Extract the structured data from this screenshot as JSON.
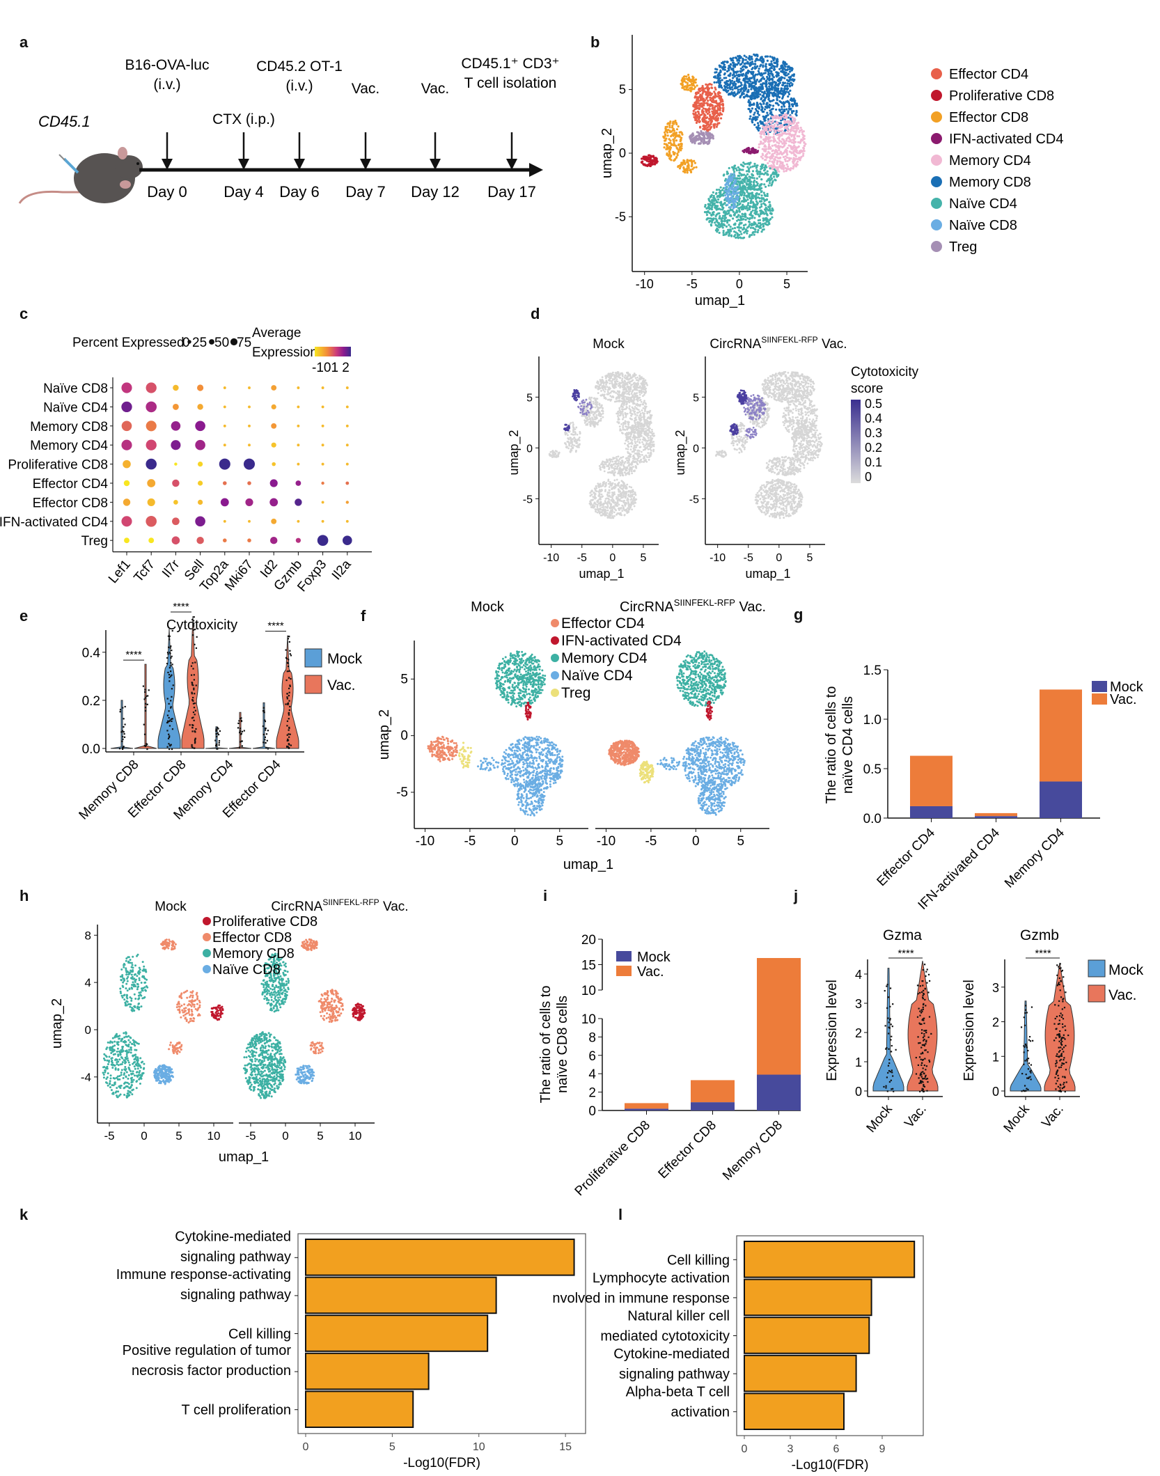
{
  "panels": {
    "a": {
      "letter": "a",
      "mouse_label": "CD45.1",
      "events": [
        {
          "day": "Day 0",
          "label_lines": [
            "B16-OVA-luc",
            "(i.v.)"
          ]
        },
        {
          "day": "Day 4",
          "label_lines": [
            "CTX (i.p.)"
          ]
        },
        {
          "day": "Day 6",
          "label_lines": [
            "CD45.2 OT-1",
            "(i.v.)"
          ]
        },
        {
          "day": "Day 7",
          "label_lines": [
            "Vac."
          ]
        },
        {
          "day": "Day 12",
          "label_lines": [
            "Vac."
          ]
        },
        {
          "day": "Day 17",
          "label_lines": [
            "CD45.1⁺ CD3⁺",
            "T cell isolation"
          ]
        }
      ]
    },
    "b": {
      "letter": "b",
      "xlabel": "umap_1",
      "ylabel": "umap_2",
      "xticks": [
        "-10",
        "-5",
        "0",
        "5"
      ],
      "yticks": [
        "5",
        "0",
        "-5"
      ],
      "legend": [
        {
          "label": "Effector CD4",
          "color": "#e8604a"
        },
        {
          "label": "Proliferative CD8",
          "color": "#c0172d"
        },
        {
          "label": "Effector CD8",
          "color": "#f2a024"
        },
        {
          "label": "IFN-activated CD4",
          "color": "#8b1a6e"
        },
        {
          "label": "Memory CD4",
          "color": "#f1b8d3"
        },
        {
          "label": "Memory CD8",
          "color": "#1a6fb5"
        },
        {
          "label": "Naïve CD4",
          "color": "#45b3aa"
        },
        {
          "label": "Naïve CD8",
          "color": "#6aade3"
        },
        {
          "label": "Treg",
          "color": "#a58fb4"
        }
      ]
    },
    "c": {
      "letter": "c",
      "size_legend_title": "Percent Expressed",
      "size_legend_values": [
        "0",
        "25",
        "50",
        "75"
      ],
      "color_legend_title_lines": [
        "Average",
        "Expression"
      ],
      "color_legend_ticks": "-101 2"
    },
    "d": {
      "letter": "d",
      "titles": [
        "Mock",
        "CircRNA"
      ],
      "title_superscript": "SIINFEKL-RFP",
      "title_suffix": " Vac.",
      "xlabel": "umap_1",
      "ylabel": "umap_2",
      "xticks": [
        "-10",
        "-5",
        "0",
        "5"
      ],
      "yticks": [
        "5",
        "0",
        "-5"
      ],
      "colorbar_title_lines": [
        "Cytotoxicity",
        "score"
      ],
      "colorbar_ticks": [
        "0.5",
        "0.4",
        "0.3",
        "0.2",
        "0.1",
        "0"
      ]
    },
    "e": {
      "letter": "e"
    },
    "f": {
      "letter": "f",
      "titles": [
        "Mock",
        "CircRNA"
      ],
      "title_superscript": "SIINFEKL-RFP",
      "title_suffix": " Vac.",
      "xlabel": "umap_1",
      "ylabel": "umap_2",
      "xticks": [
        "-10",
        "-5",
        "0",
        "5"
      ],
      "yticks": [
        "5",
        "0",
        "-5"
      ],
      "legend": [
        {
          "label": "Effector CD4",
          "color": "#ef8a6a"
        },
        {
          "label": "IFN-activated CD4",
          "color": "#c0172d"
        },
        {
          "label": "Memory CD4",
          "color": "#3cb0a3"
        },
        {
          "label": "Naïve CD4",
          "color": "#6aade3"
        },
        {
          "label": "Treg",
          "color": "#ece07a"
        }
      ]
    },
    "g": {
      "letter": "g"
    },
    "h": {
      "letter": "h",
      "titles": [
        "Mock",
        "CircRNA"
      ],
      "title_superscript": "SIINFEKL-RFP",
      "title_suffix": " Vac.",
      "xlabel": "umap_1",
      "ylabel": "umap_2",
      "xticks": [
        "-5",
        "0",
        "5",
        "10"
      ],
      "yticks": [
        "8",
        "4",
        "0",
        "-4"
      ],
      "legend": [
        {
          "label": "Proliferative CD8",
          "color": "#c0172d"
        },
        {
          "label": "Effector CD8",
          "color": "#ef8a6a"
        },
        {
          "label": "Memory CD8",
          "color": "#3cb0a3"
        },
        {
          "label": "Naïve CD8",
          "color": "#6aade3"
        }
      ]
    },
    "i": {
      "letter": "i"
    },
    "j": {
      "letter": "j"
    },
    "k": {
      "letter": "k"
    },
    "l": {
      "letter": "l"
    }
  },
  "chart_data": [
    {
      "id": "c",
      "type": "dotplot",
      "genes": [
        "Lef1",
        "Tcf7",
        "Il7r",
        "Sell",
        "Top2a",
        "Mki67",
        "Id2",
        "Gzmb",
        "Foxp3",
        "Il2a"
      ],
      "cell_types": [
        "Naïve CD8",
        "Naïve CD4",
        "Memory CD8",
        "Memory CD4",
        "Proliferative CD8",
        "Effector CD4",
        "Effector CD8",
        "IFN-activated CD4",
        "Treg"
      ],
      "percent_expressed": [
        [
          70,
          72,
          18,
          22,
          2,
          2,
          15,
          2,
          2,
          2
        ],
        [
          72,
          75,
          20,
          18,
          2,
          2,
          12,
          2,
          2,
          2
        ],
        [
          65,
          70,
          55,
          65,
          2,
          2,
          15,
          2,
          2,
          2
        ],
        [
          70,
          72,
          60,
          65,
          2,
          2,
          12,
          2,
          2,
          2
        ],
        [
          38,
          75,
          3,
          12,
          80,
          80,
          6,
          2,
          2,
          2
        ],
        [
          18,
          40,
          30,
          12,
          6,
          6,
          35,
          15,
          3,
          4
        ],
        [
          30,
          35,
          10,
          12,
          40,
          35,
          40,
          30,
          2,
          3
        ],
        [
          70,
          75,
          32,
          65,
          2,
          2,
          15,
          2,
          2,
          2
        ],
        [
          15,
          15,
          38,
          30,
          6,
          6,
          30,
          12,
          75,
          55
        ]
      ],
      "average_expression": [
        [
          0.9,
          0.6,
          -0.5,
          0.0,
          -0.5,
          -0.5,
          -0.2,
          -0.5,
          -0.5,
          -0.5
        ],
        [
          1.6,
          1.1,
          -0.1,
          -0.3,
          -0.5,
          -0.5,
          -0.3,
          -0.5,
          -0.5,
          -0.5
        ],
        [
          0.4,
          0.2,
          1.3,
          1.4,
          -0.5,
          -0.5,
          -0.1,
          -0.5,
          -0.5,
          -0.5
        ],
        [
          1.0,
          0.7,
          1.5,
          1.2,
          -0.5,
          -0.5,
          -0.6,
          -0.5,
          -0.5,
          -0.5
        ],
        [
          -0.4,
          2.0,
          -1.0,
          -0.8,
          2.1,
          2.1,
          -0.6,
          -0.5,
          -0.5,
          -0.5
        ],
        [
          -1.0,
          -0.3,
          0.6,
          -0.7,
          0.3,
          0.3,
          1.4,
          1.3,
          0.2,
          0.3
        ],
        [
          -0.3,
          -0.5,
          -0.6,
          -0.5,
          1.4,
          1.2,
          1.3,
          1.8,
          -0.5,
          -0.2
        ],
        [
          0.7,
          0.5,
          0.5,
          1.5,
          -0.5,
          -0.5,
          -0.3,
          -0.5,
          -0.5,
          -0.5
        ],
        [
          -1.0,
          -1.2,
          0.6,
          0.5,
          0.2,
          0.2,
          1.2,
          1.0,
          2.2,
          2.0
        ]
      ],
      "size_range": [
        0,
        75
      ],
      "color_range": [
        -1,
        2
      ]
    },
    {
      "id": "e",
      "type": "violin",
      "title": "Cytotoxicity",
      "categories": [
        "Memory CD8",
        "Effector CD8",
        "Memory CD4",
        "Effector CD4"
      ],
      "series": [
        {
          "name": "Mock",
          "color": "#5b9fd7",
          "max": [
            0.2,
            0.5,
            0.09,
            0.19
          ]
        },
        {
          "name": "Vac.",
          "color": "#e8765c",
          "max": [
            0.35,
            0.55,
            0.15,
            0.47
          ]
        }
      ],
      "significance": [
        "****",
        "****",
        "",
        "****"
      ],
      "yticks": [
        "0.0",
        "0.2",
        "0.4"
      ],
      "ylim": [
        0,
        0.55
      ]
    },
    {
      "id": "g",
      "type": "bar",
      "stacked": true,
      "categories": [
        "Effector CD4",
        "IFN-activated CD4",
        "Memory CD4"
      ],
      "series": [
        {
          "name": "Mock",
          "color": "#474a9c",
          "values": [
            0.12,
            0.02,
            0.37
          ]
        },
        {
          "name": "Vac.",
          "color": "#ed7c3a",
          "values": [
            0.51,
            0.03,
            0.93
          ]
        }
      ],
      "ylabel_lines": [
        "The ratio of cells to",
        "naïve CD4 cells"
      ],
      "yticks": [
        "0.0",
        "0.5",
        "1.0",
        "1.5"
      ],
      "ylim": [
        0,
        1.5
      ],
      "legend": "top-right"
    },
    {
      "id": "i",
      "type": "bar",
      "stacked": true,
      "broken_axis": true,
      "categories": [
        "Proliferative CD8",
        "Effector CD8",
        "Memory CD8"
      ],
      "series": [
        {
          "name": "Mock",
          "color": "#474a9c",
          "values": [
            0.2,
            0.9,
            3.9
          ]
        },
        {
          "name": "Vac.",
          "color": "#ed7c3a",
          "values": [
            0.6,
            2.4,
            12.4
          ]
        }
      ],
      "ylabel_lines": [
        "The ratio of cells to",
        "naïve CD8 cells"
      ],
      "yticks_lower": [
        "0",
        "2",
        "4",
        "6",
        "8",
        "10"
      ],
      "yticks_upper": [
        "10",
        "15",
        "20"
      ],
      "ylim": [
        0,
        20
      ],
      "legend": "top-left"
    },
    {
      "id": "j",
      "type": "violin",
      "panels": [
        {
          "title": "Gzma",
          "yticks": [
            "0",
            "1",
            "2",
            "3",
            "4"
          ],
          "ylim": [
            0,
            4.5
          ],
          "max": [
            4.2,
            4.45
          ]
        },
        {
          "title": "Gzmb",
          "yticks": [
            "0",
            "1",
            "2",
            "3"
          ],
          "ylim": [
            0,
            3.8
          ],
          "max": [
            2.6,
            3.7
          ]
        }
      ],
      "categories": [
        "Mock",
        "Vac."
      ],
      "series": [
        {
          "name": "Mock",
          "color": "#5b9fd7"
        },
        {
          "name": "Vac.",
          "color": "#e8765c"
        }
      ],
      "ylabel": "Expression level",
      "significance": "****"
    },
    {
      "id": "k",
      "type": "bar",
      "orientation": "horizontal",
      "categories": [
        [
          "Cytokine-mediated",
          "signaling pathway"
        ],
        [
          "Immune response-activating",
          "signaling pathway"
        ],
        [
          "Cell killing"
        ],
        [
          "Positive regulation of tumor",
          "necrosis factor production"
        ],
        [
          "T cell proliferation"
        ]
      ],
      "values": [
        15.5,
        11.0,
        10.5,
        7.1,
        6.2
      ],
      "color": "#f2a01f",
      "xlabel": "-Log10(FDR)",
      "xticks": [
        "0",
        "5",
        "10",
        "15"
      ],
      "xlim": [
        0,
        16
      ]
    },
    {
      "id": "l",
      "type": "bar",
      "orientation": "horizontal",
      "categories": [
        [
          "Cell killing"
        ],
        [
          "Lymphocyte activation",
          "nvolved in immune response"
        ],
        [
          "Natural killer cell",
          "mediated cytotoxicity"
        ],
        [
          "Cytokine-mediated",
          "signaling pathway"
        ],
        [
          "Alpha-beta T cell",
          "activation"
        ]
      ],
      "values": [
        11.1,
        8.3,
        8.15,
        7.3,
        6.5
      ],
      "color": "#f2a01f",
      "xlabel": "-Log10(FDR)",
      "xticks": [
        "0",
        "3",
        "6",
        "9"
      ],
      "xlim": [
        0,
        11.5
      ]
    }
  ]
}
